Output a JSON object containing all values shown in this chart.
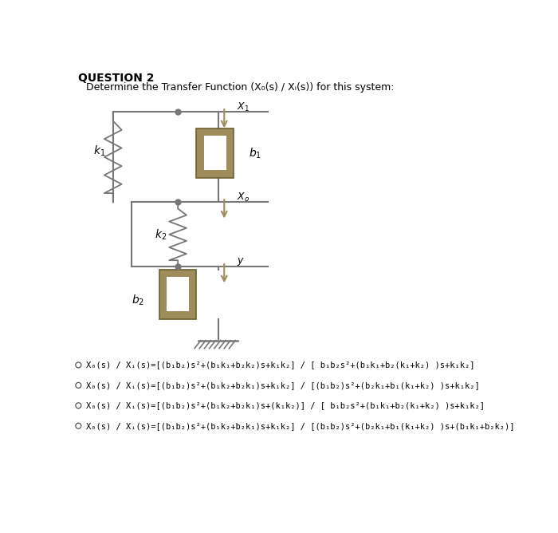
{
  "title": "QUESTION 2",
  "subtitle": "Determine the Transfer Function (X₀(s) / Xᵢ(s)) for this system:",
  "bg_color": "#ffffff",
  "options": [
    "X₀(s) / Xᵢ(s)=[(b₁b₂)s²+(b₁k₁+b₂k₂)s+k₁k₂] / [ b₁b₂s²+(b₁k₁+b₂(k₁+k₂) )s+k₁k₂]",
    "X₀(s) / Xᵢ(s)=[(b₁b₂)s²+(b₁k₂+b₂k₁)s+k₁k₂] / [(b₁b₂)s²+(b₂k₁+b₁(k₁+k₂) )s+k₁k₂]",
    "X₀(s) / Xᵢ(s)=[(b₁b₂)s²+(b₁k₂+b₂k₁)s+(k₁k₂)] / [ b₁b₂s²+(b₁k₁+b₂(k₁+k₂) )s+k₁k₂]",
    "X₀(s) / Xᵢ(s)=[(b₁b₂)s²+(b₁k₂+b₂k₁)s+k₁k₂] / [(b₁b₂)s²+(b₂k₁+b₁(k₁+k₂) )s+(b₁k₁+b₂k₂)]"
  ],
  "correct_option": -1,
  "damper_color": "#9e8c5a",
  "spring_color": "#777777",
  "line_color": "#777777",
  "node_color": "#777777",
  "ground_color": "#777777",
  "arrow_color": "#9e8c5a",
  "fig_w": 7.0,
  "fig_h": 6.68,
  "dpi": 100
}
